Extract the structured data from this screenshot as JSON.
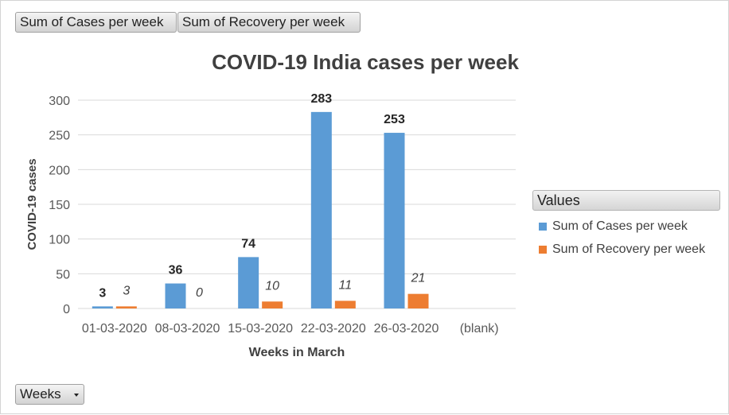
{
  "field_buttons": {
    "series1": "Sum of Cases per week",
    "series2": "Sum of Recovery per week",
    "axis_field": "Weeks"
  },
  "legend": {
    "header": "Values"
  },
  "colors": {
    "cases": "#5b9bd5",
    "recovery": "#ed7d31",
    "grid": "#d9d9d9",
    "text": "#595959",
    "title": "#404040"
  },
  "chart_data": {
    "type": "bar",
    "title": "COVID-19 India cases per week",
    "xlabel": "Weeks in March",
    "ylabel": "COVID-19 cases",
    "ylim": [
      0,
      300
    ],
    "yticks": [
      0,
      50,
      100,
      150,
      200,
      250,
      300
    ],
    "grid": true,
    "legend_position": "right",
    "categories": [
      "01-03-2020",
      "08-03-2020",
      "15-03-2020",
      "22-03-2020",
      "26-03-2020",
      "(blank)"
    ],
    "series": [
      {
        "name": "Sum of Cases per week",
        "values": [
          3,
          36,
          74,
          283,
          253,
          null
        ],
        "labels": [
          "3",
          "36",
          "74",
          "283",
          "253",
          ""
        ]
      },
      {
        "name": "Sum of Recovery per week",
        "values": [
          3,
          0,
          10,
          11,
          21,
          null
        ],
        "labels": [
          "3",
          "0",
          "10",
          "11",
          "21",
          ""
        ]
      }
    ]
  }
}
